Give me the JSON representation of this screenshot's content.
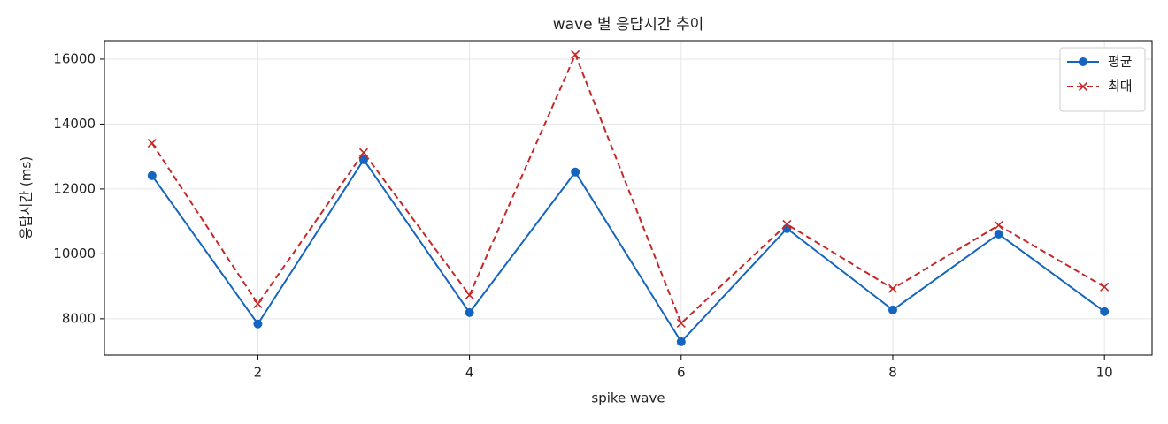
{
  "chart_data": {
    "type": "line",
    "title": "wave 별 응답시간 추이",
    "xlabel": "spike wave",
    "ylabel": "응답시간 (ms)",
    "x": [
      1,
      2,
      3,
      4,
      5,
      6,
      7,
      8,
      9,
      10
    ],
    "series": [
      {
        "name": "평균",
        "color": "#1565c0",
        "marker": "circle",
        "linestyle": "solid",
        "values": [
          12410,
          7840,
          12900,
          8190,
          12520,
          7290,
          10780,
          8270,
          10610,
          8220
        ]
      },
      {
        "name": "최대",
        "color": "#c62828",
        "marker": "cross",
        "linestyle": "dashed",
        "values": [
          13410,
          8460,
          13120,
          8730,
          16140,
          7860,
          10910,
          8930,
          10880,
          8980
        ]
      }
    ],
    "xlim": [
      0.55,
      10.45
    ],
    "xticks": [
      2,
      4,
      6,
      8,
      10
    ],
    "ylim": [
      6880,
      16570
    ],
    "yticks": [
      8000,
      10000,
      12000,
      14000,
      16000
    ],
    "grid": true,
    "legend": "upper right"
  }
}
